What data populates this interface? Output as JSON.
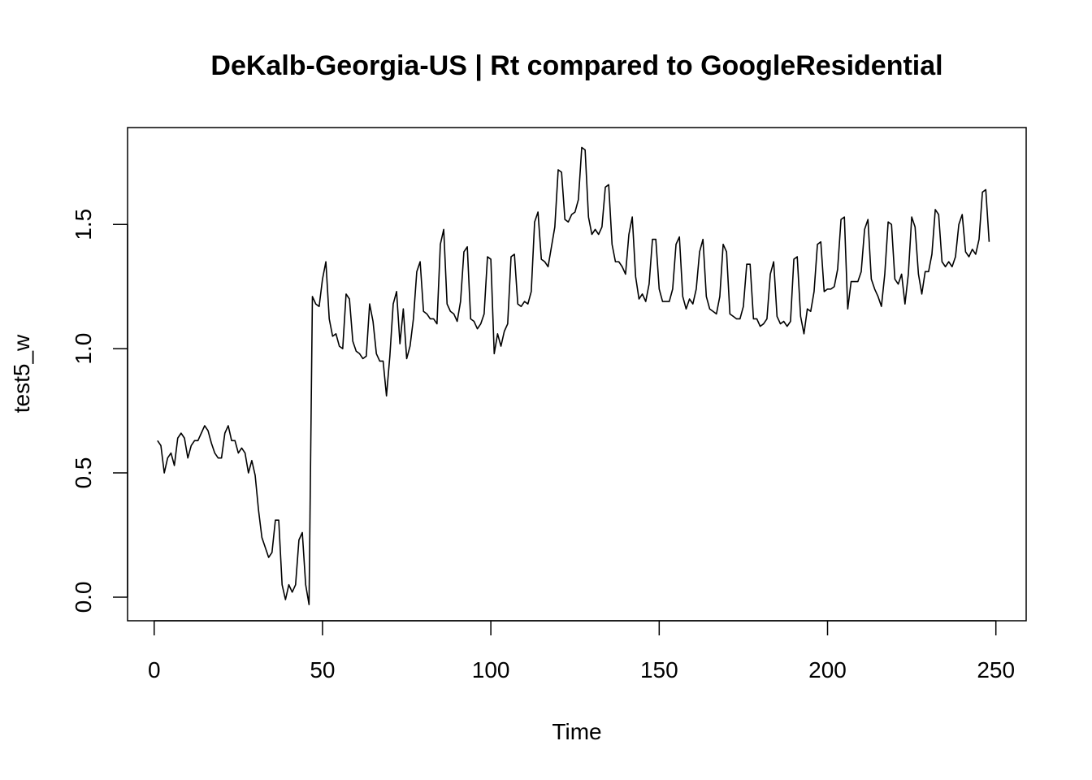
{
  "chart_data": {
    "type": "line",
    "title": "DeKalb-Georgia-US | Rt compared to GoogleResidential",
    "xlabel": "Time",
    "ylabel": "test5_w",
    "xlim": [
      -7.9,
      259
    ],
    "ylim": [
      -0.095,
      1.89
    ],
    "x_ticks": [
      0,
      50,
      100,
      150,
      200,
      250
    ],
    "x_tick_labels": [
      "0",
      "50",
      "100",
      "150",
      "200",
      "250"
    ],
    "y_ticks": [
      0.0,
      0.5,
      1.0,
      1.5
    ],
    "y_tick_labels": [
      "0.0",
      "0.5",
      "1.0",
      "1.5"
    ],
    "grid": false,
    "legend": "none",
    "line_color": "#000000",
    "series": [
      {
        "values": [
          0.63,
          0.61,
          0.5,
          0.56,
          0.58,
          0.53,
          0.64,
          0.66,
          0.64,
          0.56,
          0.61,
          0.63,
          0.63,
          0.66,
          0.69,
          0.67,
          0.62,
          0.58,
          0.56,
          0.56,
          0.66,
          0.69,
          0.63,
          0.63,
          0.58,
          0.6,
          0.58,
          0.5,
          0.55,
          0.49,
          0.35,
          0.24,
          0.2,
          0.16,
          0.18,
          0.31,
          0.31,
          0.05,
          -0.01,
          0.05,
          0.02,
          0.05,
          0.23,
          0.26,
          0.05,
          -0.03,
          1.21,
          1.18,
          1.17,
          1.28,
          1.35,
          1.12,
          1.05,
          1.06,
          1.01,
          1.0,
          1.22,
          1.2,
          1.03,
          0.99,
          0.98,
          0.96,
          0.97,
          1.18,
          1.11,
          0.98,
          0.95,
          0.95,
          0.81,
          0.97,
          1.18,
          1.23,
          1.02,
          1.16,
          0.96,
          1.01,
          1.12,
          1.31,
          1.35,
          1.15,
          1.14,
          1.12,
          1.12,
          1.1,
          1.42,
          1.48,
          1.18,
          1.15,
          1.14,
          1.11,
          1.19,
          1.39,
          1.41,
          1.12,
          1.11,
          1.08,
          1.1,
          1.14,
          1.37,
          1.36,
          0.98,
          1.06,
          1.01,
          1.07,
          1.1,
          1.37,
          1.38,
          1.18,
          1.17,
          1.19,
          1.18,
          1.23,
          1.51,
          1.55,
          1.36,
          1.35,
          1.33,
          1.41,
          1.49,
          1.72,
          1.71,
          1.52,
          1.51,
          1.54,
          1.55,
          1.6,
          1.81,
          1.8,
          1.53,
          1.46,
          1.48,
          1.46,
          1.49,
          1.65,
          1.66,
          1.42,
          1.35,
          1.35,
          1.33,
          1.3,
          1.46,
          1.53,
          1.29,
          1.2,
          1.22,
          1.19,
          1.26,
          1.44,
          1.44,
          1.24,
          1.19,
          1.19,
          1.19,
          1.24,
          1.42,
          1.45,
          1.21,
          1.16,
          1.2,
          1.18,
          1.24,
          1.39,
          1.44,
          1.21,
          1.16,
          1.15,
          1.14,
          1.21,
          1.42,
          1.39,
          1.14,
          1.13,
          1.12,
          1.12,
          1.17,
          1.34,
          1.34,
          1.12,
          1.12,
          1.09,
          1.1,
          1.12,
          1.3,
          1.35,
          1.13,
          1.1,
          1.11,
          1.09,
          1.11,
          1.36,
          1.37,
          1.13,
          1.06,
          1.16,
          1.15,
          1.23,
          1.42,
          1.43,
          1.23,
          1.24,
          1.24,
          1.25,
          1.32,
          1.52,
          1.53,
          1.16,
          1.27,
          1.27,
          1.27,
          1.31,
          1.48,
          1.52,
          1.28,
          1.24,
          1.21,
          1.17,
          1.3,
          1.51,
          1.5,
          1.28,
          1.26,
          1.3,
          1.18,
          1.3,
          1.53,
          1.49,
          1.3,
          1.22,
          1.31,
          1.31,
          1.38,
          1.56,
          1.54,
          1.35,
          1.33,
          1.35,
          1.33,
          1.37,
          1.5,
          1.54,
          1.39,
          1.37,
          1.4,
          1.38,
          1.44,
          1.63,
          1.64,
          1.43
        ],
        "x_start": 1
      }
    ]
  }
}
